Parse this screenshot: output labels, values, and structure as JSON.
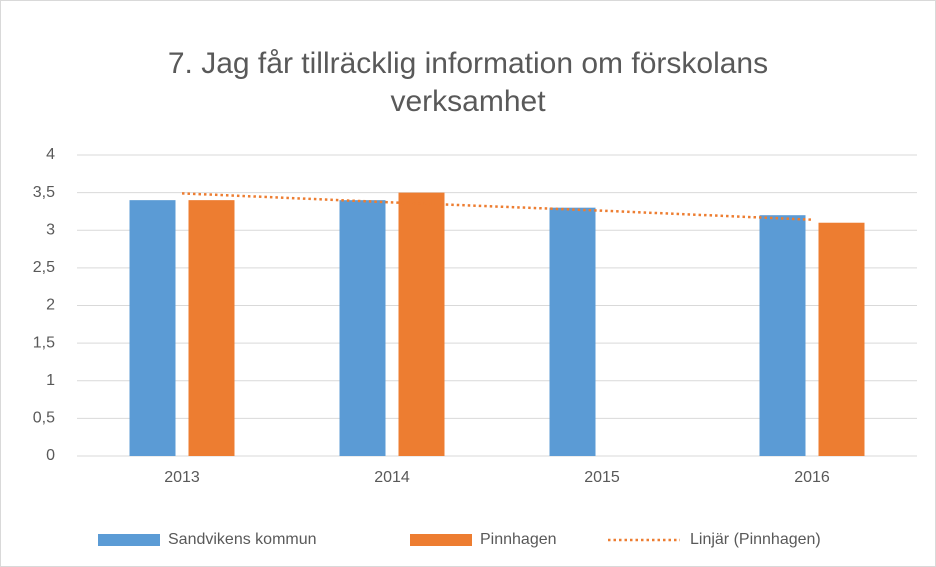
{
  "chart_data": {
    "type": "bar",
    "title": [
      "7. Jag får tillräcklig information om förskolans",
      "verksamhet"
    ],
    "categories": [
      "2013",
      "2014",
      "2015",
      "2016"
    ],
    "series": [
      {
        "name": "Sandvikens kommun",
        "color": "#5b9bd5",
        "values": [
          3.4,
          3.4,
          3.3,
          3.2
        ]
      },
      {
        "name": "Pinnhagen",
        "color": "#ed7d31",
        "values": [
          3.4,
          3.5,
          null,
          3.1
        ]
      },
      {
        "name": "Linjär (Pinnhagen)",
        "color": "#ed7d31",
        "type": "line",
        "dashed": true,
        "values": [
          3.49,
          3.37,
          3.26,
          3.14
        ]
      }
    ],
    "ylim": [
      0,
      4
    ],
    "yticks": [
      0,
      {
        "value": 0.5,
        "label": "0,5"
      },
      1,
      {
        "value": 1.5,
        "label": "1,5"
      },
      2,
      {
        "value": 2.5,
        "label": "2,5"
      },
      3,
      {
        "value": 3.5,
        "label": "3,5"
      },
      4
    ],
    "grid": true,
    "legend": "bottom"
  }
}
